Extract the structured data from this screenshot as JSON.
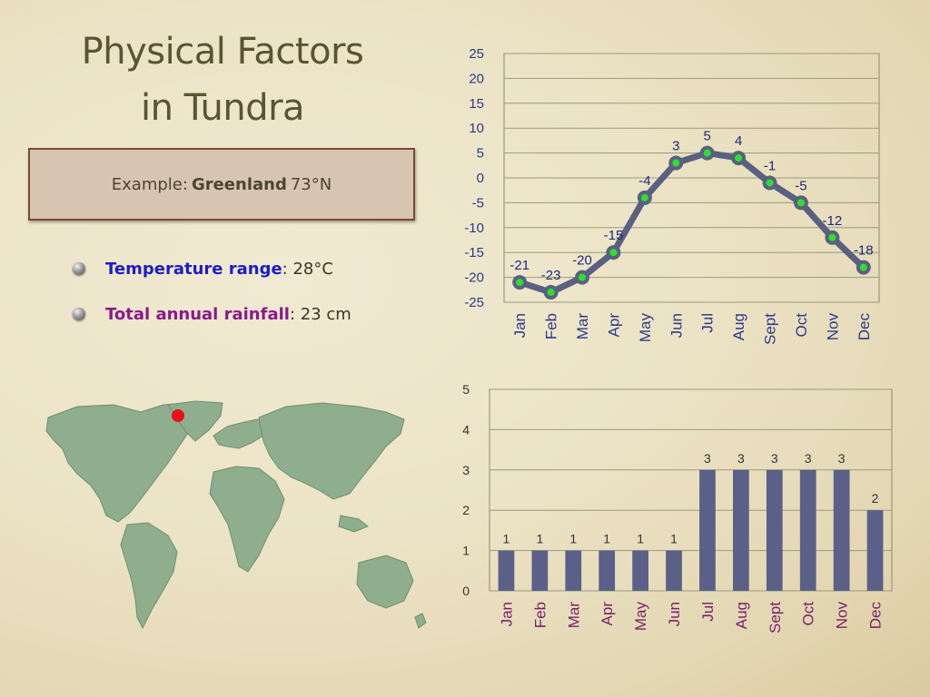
{
  "slide": {
    "title_line1": "Physical Factors",
    "title_line2": "in Tundra",
    "example_prefix": "Example:",
    "example_place": "Greenland",
    "example_lat": "73°N",
    "bullets": [
      {
        "label": "Temperature range",
        "sep": ":",
        "value": "28°C"
      },
      {
        "label": "Total annual rainfall",
        "sep": ":",
        "value": "23 cm"
      }
    ]
  },
  "colors": {
    "accent_blue": "#1c1ccc",
    "accent_purple": "#8a1a8a",
    "line": "#5a6080",
    "point": "#2ee02e",
    "bar": "#5b6088",
    "marker": "#e8101a"
  },
  "map": {
    "marker_label": "Greenland location marker"
  },
  "chart_data": [
    {
      "type": "line",
      "title": "",
      "categories": [
        "Jan",
        "Feb",
        "Mar",
        "Apr",
        "May",
        "Jun",
        "Jul",
        "Aug",
        "Sept",
        "Oct",
        "Nov",
        "Dec"
      ],
      "values": [
        -21,
        -23,
        -20,
        -15,
        -4,
        3,
        5,
        4,
        -1,
        -5,
        -12,
        -18
      ],
      "ylim": [
        -25,
        25
      ],
      "yticks": [
        25,
        20,
        15,
        10,
        5,
        0,
        -5,
        -10,
        -15,
        -20,
        -25
      ],
      "grid": true,
      "ylabel": "",
      "xlabel": ""
    },
    {
      "type": "bar",
      "title": "",
      "categories": [
        "Jan",
        "Feb",
        "Mar",
        "Apr",
        "May",
        "Jun",
        "Jul",
        "Aug",
        "Sept",
        "Oct",
        "Nov",
        "Dec"
      ],
      "values": [
        1,
        1,
        1,
        1,
        1,
        1,
        3,
        3,
        3,
        3,
        3,
        2
      ],
      "ylim": [
        0,
        5
      ],
      "yticks": [
        5,
        4,
        3,
        2,
        1,
        0
      ],
      "grid": true,
      "ylabel": "",
      "xlabel": ""
    }
  ]
}
